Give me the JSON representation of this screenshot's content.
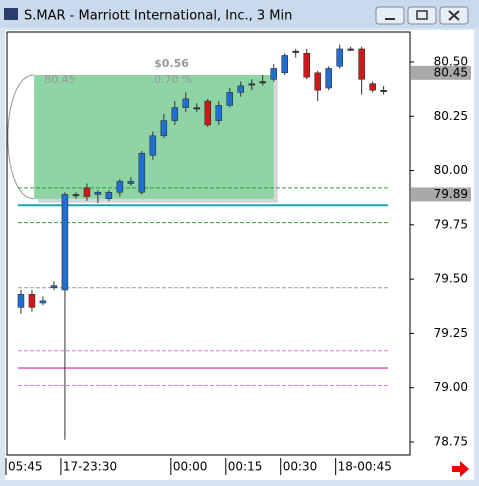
{
  "window": {
    "title": "S.MAR - Marriott International, Inc., 3 Min"
  },
  "chart_data": {
    "type": "candlestick",
    "xlim": [
      -1.27,
      35.4
    ],
    "ylim": [
      78.69,
      80.638
    ],
    "xticks": [
      {
        "value": -1,
        "label": "05:45"
      },
      {
        "value": 4,
        "label": "17-23:30"
      },
      {
        "value": 14,
        "label": "00:00"
      },
      {
        "value": 19,
        "label": "00:15"
      },
      {
        "value": 24,
        "label": "00:30"
      },
      {
        "value": 29,
        "label": "18-00:45"
      }
    ],
    "yticks": [
      {
        "value": 80.5,
        "label": "80.50"
      },
      80.25,
      {
        "value": 80,
        "label": "80.00"
      },
      79.75,
      {
        "value": 79.5,
        "label": "79.50"
      },
      79.25,
      {
        "value": 79,
        "label": "79.00"
      },
      78.75
    ],
    "x": [
      0,
      1,
      2,
      3,
      4,
      5,
      6,
      7,
      8,
      9,
      10,
      11,
      12,
      13,
      14,
      15,
      16,
      17,
      18,
      19,
      20,
      21,
      22,
      23,
      24,
      25,
      26,
      27,
      28,
      29,
      30,
      31,
      32,
      33
    ],
    "open": [
      79.37,
      79.43,
      79.39,
      79.46,
      79.45,
      79.89,
      79.92,
      79.89,
      79.87,
      79.9,
      79.94,
      79.9,
      80.07,
      80.16,
      80.23,
      80.29,
      80.29,
      80.32,
      80.23,
      80.3,
      80.36,
      80.4,
      80.41,
      80.42,
      80.45,
      80.55,
      80.54,
      80.45,
      80.38,
      80.48,
      80.56,
      80.56,
      80.4,
      80.37
    ],
    "high": [
      79.45,
      79.45,
      79.42,
      79.49,
      79.9,
      79.9,
      79.94,
      79.91,
      79.91,
      79.96,
      79.97,
      80.09,
      80.18,
      80.26,
      80.32,
      80.36,
      80.31,
      80.33,
      80.32,
      80.38,
      80.41,
      80.42,
      80.44,
      80.49,
      80.54,
      80.56,
      80.56,
      80.46,
      80.48,
      80.58,
      80.57,
      80.57,
      80.41,
      80.39
    ],
    "low": [
      79.34,
      79.35,
      79.38,
      79.45,
      78.76,
      79.87,
      79.86,
      79.85,
      79.86,
      79.88,
      79.93,
      79.89,
      80.05,
      80.15,
      80.21,
      80.27,
      80.27,
      80.2,
      80.21,
      80.29,
      80.34,
      80.37,
      80.39,
      80.41,
      80.44,
      80.52,
      80.42,
      80.32,
      80.37,
      80.47,
      80.55,
      80.35,
      80.36,
      80.35
    ],
    "close": [
      79.43,
      79.37,
      79.4,
      79.47,
      79.89,
      79.89,
      79.88,
      79.9,
      79.9,
      79.95,
      79.95,
      80.08,
      80.16,
      80.23,
      80.29,
      80.33,
      80.29,
      80.21,
      80.3,
      80.36,
      80.39,
      80.4,
      80.41,
      80.47,
      80.53,
      80.55,
      80.43,
      80.37,
      80.47,
      80.56,
      80.56,
      80.42,
      80.37,
      80.37
    ],
    "up_color": "#1f6fd1",
    "down_color": "#cc1a1a",
    "flat_color": "#333333",
    "hlines": [
      {
        "value": 79.92,
        "color": "#2ca02c",
        "dash": true
      },
      {
        "value": 79.84,
        "color": "#1aa3b0",
        "dash": false
      },
      {
        "value": 79.76,
        "color": "#2ca02c",
        "dash": true
      },
      {
        "value": 79.46,
        "color": "#999999",
        "dash": true
      },
      {
        "value": 79.17,
        "color": "#e080c8",
        "dash": true
      },
      {
        "value": 79.09,
        "color": "#e080c8",
        "dash": false
      },
      {
        "value": 79.01,
        "color": "#e080c8",
        "dash": true
      }
    ],
    "price_markers": [
      80.45,
      79.89
    ],
    "annotation": {
      "x": [
        1.2,
        23
      ],
      "y": [
        79.87,
        80.44
      ],
      "texts": [
        "80.45",
        "$0.56",
        "0.70 %"
      ],
      "color": "#8fd4a4"
    }
  }
}
